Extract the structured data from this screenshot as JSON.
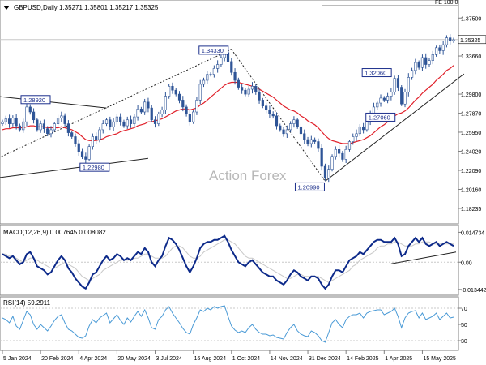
{
  "chart_data": [
    {
      "type": "candlestick",
      "legend": "GBPUSD,Daily  1.35271  1.35801  1.35217  1.35325",
      "watermark": "Action Forex",
      "ylim": [
        1.17,
        1.39
      ],
      "y_ticks": [
        "1.37500",
        "1.33660",
        "1.29800",
        "1.27870",
        "1.25950",
        "1.24020",
        "1.22090",
        "1.20160",
        "1.18235"
      ],
      "y_tick_values": [
        1.375,
        1.3366,
        1.298,
        1.2787,
        1.2595,
        1.2402,
        1.2209,
        1.2016,
        1.18235
      ],
      "last_price": "1.35325",
      "last_price_value": 1.35325,
      "fe_label": "FE 100.0",
      "fe_level": 1.3875,
      "annotations": [
        {
          "label": "1.28920",
          "date_index": 7,
          "value": 1.2892
        },
        {
          "label": "1.22980",
          "date_index": 24,
          "value": 1.2298
        },
        {
          "label": "1.34330",
          "date_index": 66,
          "value": 1.3433
        },
        {
          "label": "1.20990",
          "date_index": 93,
          "value": 1.2099
        },
        {
          "label": "1.27060",
          "date_index": 108,
          "value": 1.2706
        },
        {
          "label": "1.32060",
          "date_index": 113,
          "value": 1.3206
        }
      ],
      "series": [
        {
          "name": "Close",
          "values": [
            1.27,
            1.273,
            1.268,
            1.274,
            1.266,
            1.262,
            1.27,
            1.285,
            1.28,
            1.272,
            1.262,
            1.268,
            1.263,
            1.258,
            1.262,
            1.268,
            1.274,
            1.276,
            1.268,
            1.259,
            1.255,
            1.248,
            1.24,
            1.235,
            1.232,
            1.245,
            1.255,
            1.252,
            1.262,
            1.268,
            1.272,
            1.265,
            1.27,
            1.275,
            1.27,
            1.266,
            1.272,
            1.268,
            1.275,
            1.283,
            1.28,
            1.29,
            1.284,
            1.272,
            1.268,
            1.278,
            1.282,
            1.296,
            1.306,
            1.302,
            1.298,
            1.292,
            1.285,
            1.278,
            1.27,
            1.28,
            1.292,
            1.308,
            1.312,
            1.318,
            1.318,
            1.324,
            1.328,
            1.335,
            1.34,
            1.331,
            1.32,
            1.312,
            1.305,
            1.302,
            1.298,
            1.303,
            1.306,
            1.3,
            1.292,
            1.286,
            1.282,
            1.278,
            1.276,
            1.266,
            1.262,
            1.258,
            1.262,
            1.268,
            1.272,
            1.265,
            1.258,
            1.252,
            1.248,
            1.252,
            1.25,
            1.243,
            1.225,
            1.213,
            1.222,
            1.235,
            1.242,
            1.238,
            1.232,
            1.242,
            1.25,
            1.255,
            1.258,
            1.265,
            1.262,
            1.27,
            1.278,
            1.285,
            1.289,
            1.294,
            1.292,
            1.296,
            1.3,
            1.314,
            1.305,
            1.288,
            1.3,
            1.315,
            1.322,
            1.33,
            1.325,
            1.335,
            1.328,
            1.332,
            1.338,
            1.345,
            1.342,
            1.348,
            1.355,
            1.352,
            1.353
          ]
        },
        {
          "name": "Moving Average",
          "values": [
            1.262,
            1.263,
            1.263,
            1.264,
            1.264,
            1.264,
            1.264,
            1.265,
            1.266,
            1.266,
            1.265,
            1.265,
            1.265,
            1.264,
            1.264,
            1.264,
            1.264,
            1.265,
            1.264,
            1.263,
            1.262,
            1.26,
            1.258,
            1.255,
            1.252,
            1.251,
            1.251,
            1.251,
            1.252,
            1.253,
            1.255,
            1.256,
            1.257,
            1.258,
            1.26,
            1.261,
            1.262,
            1.263,
            1.264,
            1.266,
            1.267,
            1.268,
            1.27,
            1.27,
            1.271,
            1.272,
            1.273,
            1.275,
            1.277,
            1.279,
            1.281,
            1.282,
            1.283,
            1.283,
            1.282,
            1.283,
            1.284,
            1.287,
            1.289,
            1.292,
            1.295,
            1.298,
            1.301,
            1.304,
            1.307,
            1.309,
            1.31,
            1.31,
            1.31,
            1.309,
            1.308,
            1.307,
            1.306,
            1.305,
            1.303,
            1.301,
            1.299,
            1.297,
            1.295,
            1.292,
            1.289,
            1.286,
            1.284,
            1.282,
            1.281,
            1.279,
            1.276,
            1.274,
            1.271,
            1.269,
            1.267,
            1.264,
            1.26,
            1.256,
            1.253,
            1.251,
            1.25,
            1.249,
            1.248,
            1.248,
            1.248,
            1.249,
            1.25,
            1.251,
            1.252,
            1.254,
            1.256,
            1.259,
            1.262,
            1.265,
            1.267,
            1.27,
            1.272,
            1.276,
            1.278,
            1.279,
            1.281,
            1.284,
            1.288,
            1.292,
            1.295,
            1.299,
            1.302,
            1.305,
            1.308,
            1.312,
            1.315,
            1.318,
            1.322,
            1.324,
            1.327
          ]
        }
      ]
    },
    {
      "type": "line",
      "legend": "MACD(12,26,9)  0.007645  0.008082",
      "ylim": [
        -0.0155,
        0.0165
      ],
      "y_ticks": [
        "0.014734",
        "0.00",
        "-0.013442"
      ],
      "y_tick_values": [
        0.014734,
        0.0,
        -0.013442
      ],
      "series": [
        {
          "name": "MACD",
          "values": [
            0.004,
            0.003,
            0.002,
            0.003,
            0.001,
            -0.001,
            0.0,
            0.004,
            0.005,
            0.002,
            -0.002,
            -0.003,
            -0.004,
            -0.006,
            -0.005,
            -0.002,
            0.001,
            0.003,
            0.001,
            -0.003,
            -0.005,
            -0.008,
            -0.01,
            -0.012,
            -0.013,
            -0.01,
            -0.006,
            -0.005,
            -0.002,
            0.001,
            0.003,
            0.001,
            0.002,
            0.004,
            0.003,
            0.001,
            0.002,
            0.001,
            0.003,
            0.005,
            0.004,
            0.007,
            0.005,
            0.0,
            -0.002,
            0.001,
            0.003,
            0.008,
            0.012,
            0.011,
            0.009,
            0.006,
            0.002,
            -0.002,
            -0.005,
            -0.002,
            0.002,
            0.007,
            0.009,
            0.01,
            0.01,
            0.011,
            0.011,
            0.012,
            0.013,
            0.01,
            0.006,
            0.003,
            0.0,
            -0.001,
            -0.002,
            0.0,
            0.001,
            -0.001,
            -0.003,
            -0.005,
            -0.006,
            -0.007,
            -0.007,
            -0.009,
            -0.01,
            -0.011,
            -0.009,
            -0.006,
            -0.004,
            -0.005,
            -0.007,
            -0.008,
            -0.009,
            -0.007,
            -0.007,
            -0.008,
            -0.011,
            -0.013,
            -0.011,
            -0.007,
            -0.004,
            -0.004,
            -0.005,
            -0.002,
            0.001,
            0.002,
            0.003,
            0.005,
            0.004,
            0.006,
            0.008,
            0.01,
            0.011,
            0.011,
            0.01,
            0.01,
            0.01,
            0.012,
            0.009,
            0.003,
            0.004,
            0.008,
            0.01,
            0.012,
            0.01,
            0.012,
            0.009,
            0.008,
            0.009,
            0.01,
            0.008,
            0.009,
            0.01,
            0.009,
            0.008
          ]
        },
        {
          "name": "Signal",
          "values": [
            0.004,
            0.004,
            0.003,
            0.003,
            0.002,
            0.001,
            0.0,
            0.001,
            0.002,
            0.002,
            0.001,
            0.0,
            -0.001,
            -0.002,
            -0.003,
            -0.003,
            -0.002,
            -0.001,
            0.0,
            -0.001,
            -0.002,
            -0.003,
            -0.005,
            -0.007,
            -0.008,
            -0.009,
            -0.008,
            -0.007,
            -0.006,
            -0.004,
            -0.003,
            -0.002,
            -0.001,
            0.0,
            0.001,
            0.001,
            0.001,
            0.001,
            0.002,
            0.002,
            0.003,
            0.004,
            0.004,
            0.003,
            0.002,
            0.002,
            0.002,
            0.003,
            0.005,
            0.007,
            0.008,
            0.008,
            0.007,
            0.005,
            0.003,
            0.002,
            0.002,
            0.003,
            0.005,
            0.006,
            0.007,
            0.008,
            0.009,
            0.01,
            0.011,
            0.011,
            0.01,
            0.009,
            0.007,
            0.005,
            0.003,
            0.002,
            0.002,
            0.001,
            0.0,
            -0.001,
            -0.002,
            -0.003,
            -0.004,
            -0.005,
            -0.006,
            -0.007,
            -0.008,
            -0.008,
            -0.007,
            -0.006,
            -0.006,
            -0.007,
            -0.007,
            -0.007,
            -0.007,
            -0.007,
            -0.008,
            -0.009,
            -0.01,
            -0.009,
            -0.008,
            -0.007,
            -0.006,
            -0.005,
            -0.004,
            -0.002,
            -0.001,
            0.001,
            0.002,
            0.003,
            0.004,
            0.005,
            0.007,
            0.008,
            0.008,
            0.009,
            0.009,
            0.01,
            0.01,
            0.009,
            0.008,
            0.008,
            0.008,
            0.009,
            0.009,
            0.01,
            0.01,
            0.01,
            0.009,
            0.009,
            0.009,
            0.009,
            0.009,
            0.009,
            0.009
          ]
        }
      ]
    },
    {
      "type": "line",
      "legend": "RSI(14)  59.2911",
      "ylim": [
        20,
        80
      ],
      "y_ticks": [
        "70",
        "50",
        "30"
      ],
      "y_tick_values": [
        70,
        50,
        30
      ],
      "series": [
        {
          "name": "RSI",
          "values": [
            58,
            56,
            52,
            60,
            48,
            44,
            55,
            66,
            62,
            50,
            44,
            50,
            46,
            42,
            48,
            55,
            60,
            62,
            52,
            44,
            42,
            38,
            34,
            33,
            36,
            48,
            56,
            52,
            58,
            61,
            64,
            52,
            57,
            62,
            55,
            50,
            58,
            53,
            60,
            66,
            60,
            68,
            58,
            46,
            44,
            56,
            60,
            68,
            72,
            64,
            58,
            52,
            45,
            40,
            38,
            50,
            58,
            68,
            66,
            70,
            68,
            72,
            70,
            72,
            73,
            60,
            48,
            43,
            40,
            42,
            40,
            46,
            50,
            44,
            40,
            38,
            38,
            36,
            37,
            34,
            33,
            32,
            40,
            46,
            50,
            42,
            38,
            36,
            35,
            42,
            40,
            36,
            30,
            28,
            40,
            52,
            56,
            50,
            46,
            56,
            60,
            62,
            62,
            64,
            58,
            64,
            66,
            67,
            68,
            68,
            62,
            64,
            66,
            70,
            60,
            46,
            58,
            64,
            66,
            67,
            58,
            64,
            56,
            58,
            60,
            64,
            56,
            60,
            64,
            58,
            59
          ]
        }
      ]
    }
  ],
  "x_axis": {
    "labels": [
      "5 Jan 2024",
      "20 Feb 2024",
      "4 Apr 2024",
      "20 May 2024",
      "3 Jul 2024",
      "16 Aug 2024",
      "1 Oct 2024",
      "14 Nov 2024",
      "31 Dec 2024",
      "14 Feb 2025",
      "1 Apr 2025",
      "15 May 2025"
    ],
    "label_indices": [
      0,
      11,
      22,
      33,
      44,
      55,
      66,
      77,
      88,
      99,
      110,
      121
    ],
    "bar_count": 131
  },
  "colors": {
    "up_candle": "#2f5597",
    "down_candle": "#2f5597",
    "moving_average": "#e0202a",
    "macd_line": "#0d2a8a",
    "signal_line": "#c8c8c8",
    "rsi_line": "#4a9ad6",
    "annotation_box": "#1c2f8c"
  }
}
